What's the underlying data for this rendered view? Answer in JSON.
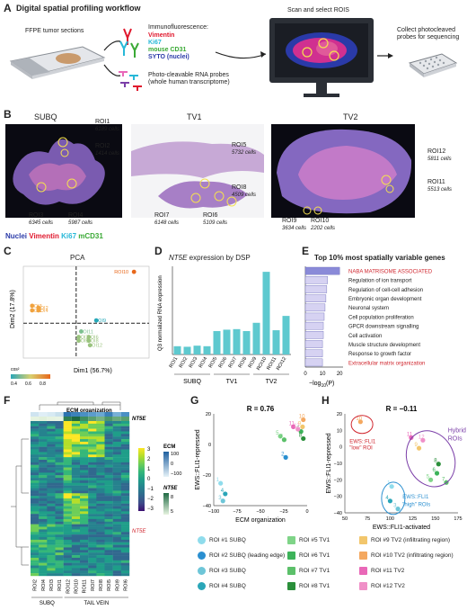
{
  "panels": [
    "A",
    "B",
    "C",
    "D",
    "E",
    "F",
    "G",
    "H"
  ],
  "A": {
    "title": "Digital spatial profiling workflow",
    "ffpe": "FFPE tumor sections",
    "if_title": "Immunofluorescence:",
    "if_markers": [
      {
        "text": "Vimentin",
        "color": "#e0182d"
      },
      {
        "text": "Ki67",
        "color": "#27b8d8"
      },
      {
        "text": "mouse CD31",
        "color": "#3aa935"
      },
      {
        "text": "SYTO (nuclei)",
        "color": "#2a3aa8"
      }
    ],
    "probes": "Photo-cleavable RNA probes",
    "probes2": "(whole human transcriptome)",
    "scan": "Scan and select ROIS",
    "collect": "Collect photocleaved",
    "collect2": "probes for sequencing"
  },
  "B": {
    "titles": [
      "SUBQ",
      "TV1",
      "TV2"
    ],
    "rois": [
      {
        "name": "ROI1",
        "cells": "6189 cells"
      },
      {
        "name": "ROI2",
        "cells": "1414 cells"
      },
      {
        "name": "ROI3",
        "cells": "6345 cells"
      },
      {
        "name": "ROI4",
        "cells": "5987 cells"
      },
      {
        "name": "ROI5",
        "cells": "5732 cells"
      },
      {
        "name": "ROI8",
        "cells": "4509 cells"
      },
      {
        "name": "ROI7",
        "cells": "6148 cells"
      },
      {
        "name": "ROI6",
        "cells": "5109 cells"
      },
      {
        "name": "ROI12",
        "cells": "5811 cells"
      },
      {
        "name": "ROI11",
        "cells": "5513 cells"
      },
      {
        "name": "ROI9",
        "cells": "3634 cells"
      },
      {
        "name": "ROI10",
        "cells": "2202 cells"
      }
    ],
    "legend": [
      {
        "text": "Nuclei",
        "color": "#2a3aa8"
      },
      {
        "text": "Vimentin",
        "color": "#e0182d"
      },
      {
        "text": "Ki67",
        "color": "#27b8d8"
      },
      {
        "text": "mCD31",
        "color": "#3aa935"
      }
    ]
  },
  "C": {
    "title": "PCA",
    "xlabel": "Dim1 (56.7%)",
    "ylabel": "Dim2 (17.8%)",
    "cos2_label": "cos²",
    "cos2_ticks": [
      "0.4",
      "0.6",
      "0.8"
    ],
    "points": [
      {
        "label": "ROI10",
        "x": 0.88,
        "y": 0.06,
        "color": "#e8681b"
      },
      {
        "label": "ROI3",
        "x": 0.07,
        "y": 0.43,
        "color": "#f1a33f"
      },
      {
        "label": "ROI2",
        "x": 0.12,
        "y": 0.45,
        "color": "#f1a33f"
      },
      {
        "label": "ROI1",
        "x": 0.07,
        "y": 0.48,
        "color": "#f1a33f"
      },
      {
        "label": "ROI4",
        "x": 0.12,
        "y": 0.48,
        "color": "#f1a33f"
      },
      {
        "label": "ROI9",
        "x": 0.58,
        "y": 0.59,
        "color": "#26a8b8"
      },
      {
        "label": "ROI11",
        "x": 0.46,
        "y": 0.71,
        "color": "#7cc08f"
      },
      {
        "label": "ROI7",
        "x": 0.44,
        "y": 0.77,
        "color": "#9ac37e"
      },
      {
        "label": "ROI6",
        "x": 0.52,
        "y": 0.77,
        "color": "#9ac37e"
      },
      {
        "label": "ROI5",
        "x": 0.44,
        "y": 0.81,
        "color": "#9ac37e"
      },
      {
        "label": "ROI8",
        "x": 0.52,
        "y": 0.81,
        "color": "#9ac37e"
      },
      {
        "label": "ROI12",
        "x": 0.53,
        "y": 0.86,
        "color": "#9ac37e"
      }
    ]
  },
  "D": {
    "title_gene": "NT5E",
    "title_rest": " expression by DSP",
    "ylabel": "Q3 normalized RNA expression",
    "groups": [
      "SUBQ",
      "TV1",
      "TV2"
    ]
  },
  "E": {
    "title": "Top 10% most spatially variable genes",
    "xlabel": "−log",
    "xlabel_sub": "10",
    "xlabel_end": "(P)",
    "xticks": [
      "0",
      "10",
      "20"
    ]
  },
  "F": {
    "ecm_org": "ECM organization",
    "nt5e": "NT5E",
    "nt5e_red": "NT5E",
    "ecm_legend": "ECM",
    "ecm_ticks": [
      "100",
      "0",
      "−100"
    ],
    "nt5e_legend": "NT5E",
    "nt5e_ticks": [
      "8",
      "5"
    ],
    "scale_ticks": [
      "3",
      "2",
      "1",
      "0",
      "−1",
      "−2",
      "−3"
    ],
    "col_labels": [
      "ROI2",
      "ROI4",
      "ROI3",
      "ROI1",
      "ROI12",
      "ROI10",
      "ROI11",
      "ROI7",
      "ROI8",
      "ROI5",
      "ROI9",
      "ROI6"
    ],
    "groups": [
      "SUBQ",
      "TAIL VEIN"
    ]
  },
  "G": {
    "r": "R = 0.76",
    "xlabel": "ECM organization",
    "ylabel": "EWS::FLI1-repressed",
    "xticks": [
      "−100",
      "−75",
      "−50",
      "−25",
      "0"
    ],
    "yticks": [
      "20",
      "0",
      "−20",
      "−40"
    ]
  },
  "H": {
    "r": "R = −0.11",
    "xlabel": "EWS::FLI1-activated",
    "ylabel": "EWS::FLI1-repressed",
    "xticks": [
      "50",
      "75",
      "100",
      "125",
      "150",
      "175"
    ],
    "yticks": [
      "20",
      "10",
      "0",
      "−10",
      "−20",
      "−30",
      "−40"
    ],
    "low": [
      "EWS::FLI1",
      "\"low\" ROI"
    ],
    "hybrid": [
      "Hybrid",
      "ROIs"
    ],
    "high": [
      "EWS::FLI1",
      "\"high\" ROIs"
    ]
  },
  "legend": [
    {
      "text": "ROI #1 SUBQ",
      "color": "#8fdcec"
    },
    {
      "text": "ROI #2 SUBQ (leading edge)",
      "color": "#2a8fd0"
    },
    {
      "text": "ROI #3 SUBQ",
      "color": "#6ec6d8"
    },
    {
      "text": "ROI #4 SUBQ",
      "color": "#2aa6b8"
    },
    {
      "text": "ROI #5 TV1",
      "color": "#7fd488"
    },
    {
      "text": "ROI #6 TV1",
      "color": "#3db35a"
    },
    {
      "text": "ROI #7 TV1",
      "color": "#5cc06a"
    },
    {
      "text": "ROI #8 TV1",
      "color": "#2a8f3a"
    },
    {
      "text": "ROI #9 TV2 (infiltrating region)",
      "color": "#f2c66c"
    },
    {
      "text": "ROI #10 TV2 (infiltrating region)",
      "color": "#f4a860"
    },
    {
      "text": "ROI #11 TV2",
      "color": "#e968b8"
    },
    {
      "text": "ROI #12 TV2",
      "color": "#f090c8"
    }
  ],
  "chart_data": [
    {
      "type": "bar",
      "title": "NT5E expression by DSP",
      "ylabel": "Q3 normalized RNA expression",
      "categories": [
        "ROI1",
        "ROI2",
        "ROI3",
        "ROI4",
        "ROI5",
        "ROI6",
        "ROI7",
        "ROI8",
        "ROI9",
        "ROI10",
        "ROI11",
        "ROI12"
      ],
      "values": [
        30,
        28,
        32,
        30,
        85,
        90,
        92,
        85,
        115,
        300,
        88,
        140
      ],
      "ylim": [
        0,
        320
      ]
    },
    {
      "type": "bar",
      "title": "Top 10% most spatially variable genes",
      "categories": [
        "NABA MATRISOME ASSOCIATED",
        "Regulation of ion transport",
        "Regulation of cell-cell adhesion",
        "Embryonic organ development",
        "Neuronal system",
        "Cell population proliferation",
        "GPCR downstream signalling",
        "Cell activation",
        "Muscle structure development",
        "Response to growth factor",
        "Extracellular matrix organization"
      ],
      "values": [
        20,
        13,
        12.5,
        12,
        11.5,
        11,
        10.5,
        10.5,
        10,
        10,
        10
      ],
      "highlight": [
        "NABA MATRISOME ASSOCIATED",
        "Extracellular matrix organization"
      ],
      "xlim": [
        0,
        22
      ]
    },
    {
      "type": "scatter",
      "title": "R = 0.76",
      "xlabel": "ECM organization",
      "ylabel": "EWS::FLI1-repressed",
      "points": [
        {
          "label": "1",
          "x": -103,
          "y": -31
        },
        {
          "label": "2",
          "x": -18,
          "y": -9
        },
        {
          "label": "3",
          "x": -100,
          "y": -46
        },
        {
          "label": "4",
          "x": -97,
          "y": -40
        },
        {
          "label": "5",
          "x": -25,
          "y": 9
        },
        {
          "label": "6",
          "x": 2,
          "y": 13
        },
        {
          "label": "7",
          "x": -20,
          "y": 6
        },
        {
          "label": "8",
          "x": 5,
          "y": 7
        },
        {
          "label": "9",
          "x": 4,
          "y": 17
        },
        {
          "label": "10",
          "x": 5,
          "y": 23
        },
        {
          "label": "11",
          "x": -8,
          "y": 17
        },
        {
          "label": "12",
          "x": -2,
          "y": 15
        }
      ],
      "xlim": [
        -112,
        10
      ],
      "ylim": [
        -50,
        28
      ]
    },
    {
      "type": "scatter",
      "title": "R = −0.11",
      "xlabel": "EWS::FLI1-activated",
      "ylabel": "EWS::FLI1-repressed",
      "points": [
        {
          "label": "10",
          "x": 60,
          "y": 24
        },
        {
          "label": "11",
          "x": 125,
          "y": 12
        },
        {
          "label": "12",
          "x": 140,
          "y": 10
        },
        {
          "label": "9",
          "x": 135,
          "y": 4
        },
        {
          "label": "8",
          "x": 160,
          "y": -8
        },
        {
          "label": "6",
          "x": 158,
          "y": -15
        },
        {
          "label": "5",
          "x": 150,
          "y": -20
        },
        {
          "label": "7",
          "x": 170,
          "y": -22
        },
        {
          "label": "1",
          "x": 100,
          "y": -25
        },
        {
          "label": "4",
          "x": 98,
          "y": -36
        },
        {
          "label": "3",
          "x": 108,
          "y": -42
        }
      ],
      "xlim": [
        40,
        185
      ],
      "ylim": [
        -45,
        30
      ]
    }
  ]
}
